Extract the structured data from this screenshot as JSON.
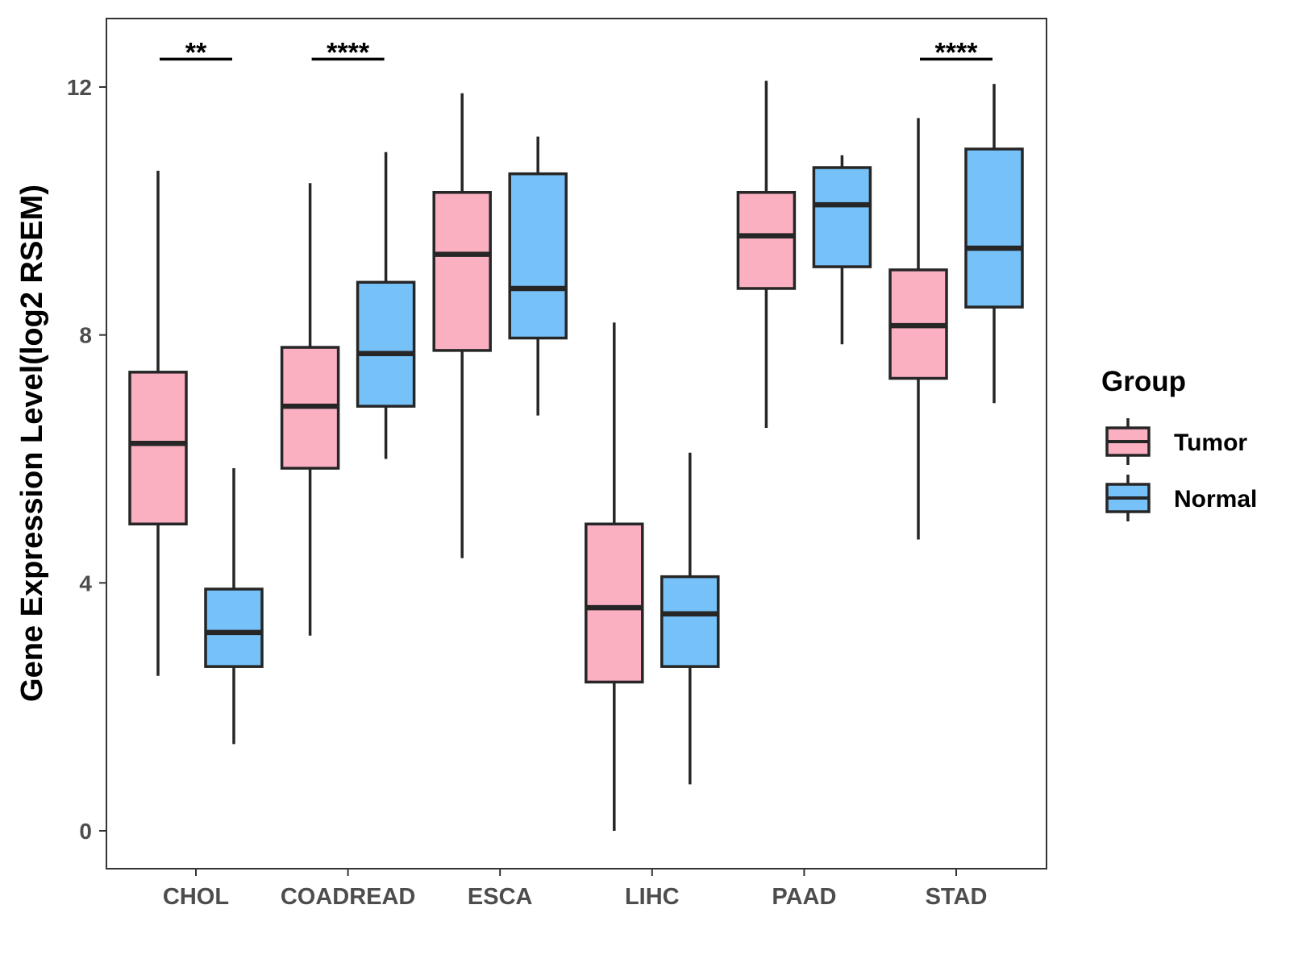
{
  "chart_data": {
    "type": "boxplot",
    "title": "",
    "xlabel": "",
    "ylabel": "Gene Expression Level(log2 RSEM)",
    "ylim": [
      -0.6,
      13.1
    ],
    "yticks": [
      0,
      4,
      8,
      12
    ],
    "grid": false,
    "legend_position": "right",
    "categories": [
      "CHOL",
      "COADREAD",
      "ESCA",
      "LIHC",
      "PAAD",
      "STAD"
    ],
    "legend": {
      "title": "Group",
      "entries": [
        {
          "name": "Tumor",
          "color": "#fbb0c2"
        },
        {
          "name": "Normal",
          "color": "#75c1f8"
        }
      ]
    },
    "series": [
      {
        "name": "Tumor",
        "color": "#fbb0c2",
        "boxes": [
          {
            "category": "CHOL",
            "min": 2.5,
            "q1": 4.95,
            "median": 6.25,
            "q3": 7.4,
            "max": 10.65
          },
          {
            "category": "COADREAD",
            "min": 3.15,
            "q1": 5.85,
            "median": 6.85,
            "q3": 7.8,
            "max": 10.45
          },
          {
            "category": "ESCA",
            "min": 4.4,
            "q1": 7.75,
            "median": 9.3,
            "q3": 10.3,
            "max": 11.9
          },
          {
            "category": "LIHC",
            "min": 0.0,
            "q1": 2.4,
            "median": 3.6,
            "q3": 4.95,
            "max": 8.2
          },
          {
            "category": "PAAD",
            "min": 6.5,
            "q1": 8.75,
            "median": 9.6,
            "q3": 10.3,
            "max": 12.1
          },
          {
            "category": "STAD",
            "min": 4.7,
            "q1": 7.3,
            "median": 8.15,
            "q3": 9.05,
            "max": 11.5
          }
        ]
      },
      {
        "name": "Normal",
        "color": "#75c1f8",
        "boxes": [
          {
            "category": "CHOL",
            "min": 1.4,
            "q1": 2.65,
            "median": 3.2,
            "q3": 3.9,
            "max": 5.85
          },
          {
            "category": "COADREAD",
            "min": 6.0,
            "q1": 6.85,
            "median": 7.7,
            "q3": 8.85,
            "max": 10.95
          },
          {
            "category": "ESCA",
            "min": 6.7,
            "q1": 7.95,
            "median": 8.75,
            "q3": 10.6,
            "max": 11.2
          },
          {
            "category": "LIHC",
            "min": 0.75,
            "q1": 2.65,
            "median": 3.5,
            "q3": 4.1,
            "max": 6.1
          },
          {
            "category": "PAAD",
            "min": 7.85,
            "q1": 9.1,
            "median": 10.1,
            "q3": 10.7,
            "max": 10.9
          },
          {
            "category": "STAD",
            "min": 6.9,
            "q1": 8.45,
            "median": 9.4,
            "q3": 11.0,
            "max": 12.05
          }
        ]
      }
    ],
    "annotations": [
      {
        "category": "CHOL",
        "label": "**",
        "y": 12.45
      },
      {
        "category": "COADREAD",
        "label": "****",
        "y": 12.45
      },
      {
        "category": "STAD",
        "label": "****",
        "y": 12.45
      }
    ]
  }
}
